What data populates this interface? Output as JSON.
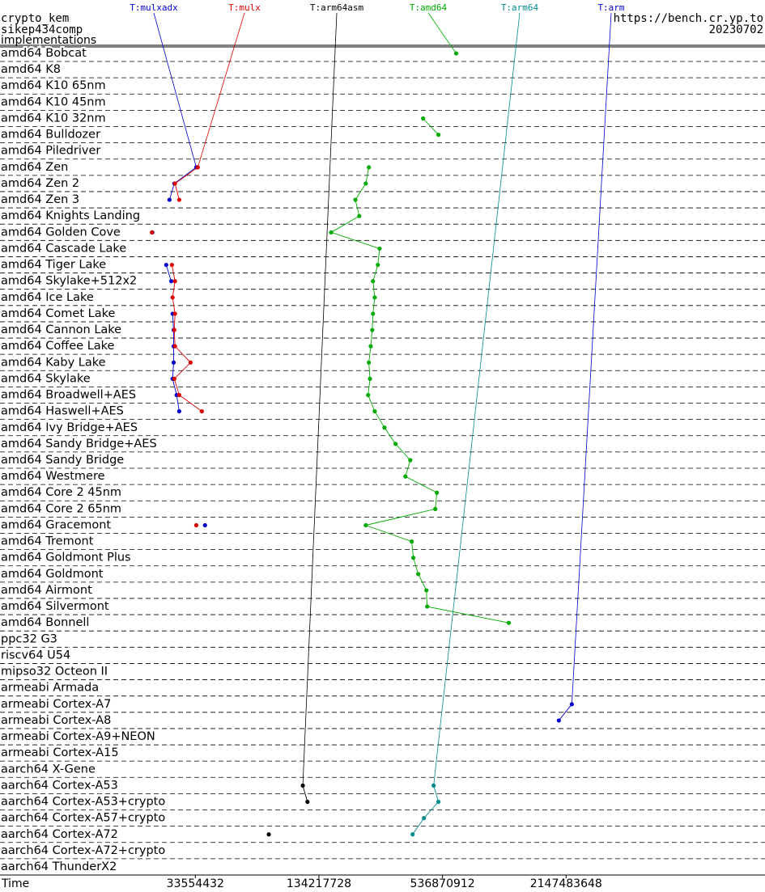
{
  "chart_data": {
    "type": "line",
    "title": "crypto_kem",
    "subtitle": "sikep434comp",
    "ylabel": "implementations",
    "annotations": [
      "https://bench.cr.yp.to",
      "20230702"
    ],
    "xlabel": "Time",
    "xscale": "log",
    "xlim": [
      3750000,
      20000000000
    ],
    "xticks": [
      33554432,
      134217728,
      536870912,
      2147483648
    ],
    "grid": true,
    "categories": [
      "amd64 Bobcat",
      "amd64 K8",
      "amd64 K10 65nm",
      "amd64 K10 45nm",
      "amd64 K10 32nm",
      "amd64 Bulldozer",
      "amd64 Piledriver",
      "amd64 Zen",
      "amd64 Zen 2",
      "amd64 Zen 3",
      "amd64 Knights Landing",
      "amd64 Golden Cove",
      "amd64 Cascade Lake",
      "amd64 Tiger Lake",
      "amd64 Skylake+512x2",
      "amd64 Ice Lake",
      "amd64 Comet Lake",
      "amd64 Cannon Lake",
      "amd64 Coffee Lake",
      "amd64 Kaby Lake",
      "amd64 Skylake",
      "amd64 Broadwell+AES",
      "amd64 Haswell+AES",
      "amd64 Ivy Bridge+AES",
      "amd64 Sandy Bridge+AES",
      "amd64 Sandy Bridge",
      "amd64 Westmere",
      "amd64 Core 2 45nm",
      "amd64 Core 2 65nm",
      "amd64 Gracemont",
      "amd64 Tremont",
      "amd64 Goldmont Plus",
      "amd64 Goldmont",
      "amd64 Airmont",
      "amd64 Silvermont",
      "amd64 Bonnell",
      "ppc32 G3",
      "riscv64 U54",
      "mipso32 Octeon II",
      "armeabi Armada",
      "armeabi Cortex-A7",
      "armeabi Cortex-A8",
      "armeabi Cortex-A9+NEON",
      "armeabi Cortex-A15",
      "aarch64 X-Gene",
      "aarch64 Cortex-A53",
      "aarch64 Cortex-A53+crypto",
      "aarch64 Cortex-A57+crypto",
      "aarch64 Cortex-A72",
      "aarch64 Cortex-A72+crypto",
      "aarch64 ThunderX2"
    ],
    "series": [
      {
        "name": "T:mulxadx",
        "color": "#0000cc",
        "values": [
          null,
          null,
          null,
          null,
          null,
          null,
          null,
          33900000,
          26500000,
          25100000,
          null,
          20700000,
          null,
          24200000,
          25600000,
          null,
          26000000,
          26300000,
          26300000,
          26300000,
          26000000,
          27200000,
          28000000,
          null,
          null,
          null,
          null,
          null,
          null,
          37400000,
          null,
          null,
          null,
          null,
          null,
          null,
          null,
          null,
          null,
          null,
          null,
          null,
          null,
          null,
          null,
          null,
          null,
          null,
          null,
          null,
          null
        ]
      },
      {
        "name": "T:mulx",
        "color": "#dd0000",
        "values": [
          null,
          null,
          null,
          null,
          null,
          null,
          null,
          34500000,
          26700000,
          28000000,
          null,
          20600000,
          null,
          25800000,
          26700000,
          26000000,
          26700000,
          26500000,
          26700000,
          31800000,
          26500000,
          28000000,
          36100000,
          null,
          null,
          null,
          null,
          null,
          null,
          33900000,
          null,
          null,
          null,
          null,
          null,
          null,
          null,
          null,
          null,
          null,
          null,
          null,
          null,
          null,
          null,
          null,
          null,
          null,
          null,
          null,
          null
        ]
      },
      {
        "name": "T:arm64asm",
        "color": "#000000",
        "values": [
          null,
          null,
          null,
          null,
          null,
          null,
          null,
          null,
          null,
          null,
          null,
          null,
          null,
          null,
          null,
          null,
          null,
          null,
          null,
          null,
          null,
          null,
          null,
          null,
          null,
          null,
          null,
          null,
          null,
          null,
          null,
          null,
          null,
          null,
          null,
          null,
          null,
          null,
          null,
          null,
          null,
          null,
          null,
          null,
          null,
          112000000,
          118000000,
          null,
          76500000,
          null,
          null
        ]
      },
      {
        "name": "T:amd64",
        "color": "#00aa00",
        "values": [
          626000000,
          null,
          null,
          null,
          432000000,
          513000000,
          null,
          235000000,
          227000000,
          202000000,
          211000000,
          154000000,
          265000000,
          260000000,
          246000000,
          251000000,
          246000000,
          244000000,
          240000000,
          235000000,
          238000000,
          233000000,
          251000000,
          280000000,
          317000000,
          374000000,
          354000000,
          504000000,
          495000000,
          227000000,
          380000000,
          387000000,
          409000000,
          448000000,
          452000000,
          1130000000,
          null,
          null,
          null,
          null,
          null,
          null,
          null,
          null,
          null,
          null,
          null,
          null,
          null,
          null,
          null
        ]
      },
      {
        "name": "T:arm64",
        "color": "#008b8b",
        "values": [
          null,
          null,
          null,
          null,
          null,
          null,
          null,
          null,
          null,
          null,
          null,
          null,
          null,
          null,
          null,
          null,
          null,
          null,
          null,
          null,
          null,
          null,
          null,
          null,
          null,
          null,
          null,
          null,
          null,
          null,
          null,
          null,
          null,
          null,
          null,
          null,
          null,
          null,
          null,
          null,
          null,
          null,
          null,
          null,
          null,
          486000000,
          513000000,
          436000000,
          384000000,
          null,
          null
        ]
      },
      {
        "name": "T:arm",
        "color": "#0000cc",
        "values": [
          null,
          null,
          null,
          null,
          null,
          null,
          null,
          null,
          null,
          null,
          null,
          null,
          null,
          null,
          null,
          null,
          null,
          null,
          null,
          null,
          null,
          null,
          null,
          null,
          null,
          null,
          null,
          null,
          null,
          null,
          null,
          null,
          null,
          null,
          null,
          null,
          null,
          null,
          null,
          null,
          2290000000,
          1980000000,
          null,
          null,
          null,
          null,
          null,
          null,
          null,
          null,
          null
        ]
      }
    ]
  }
}
